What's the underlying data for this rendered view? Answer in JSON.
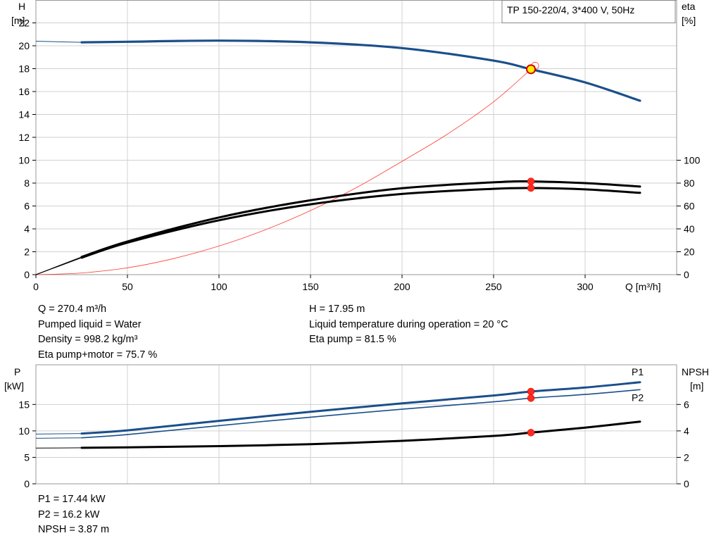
{
  "chart_data": [
    {
      "type": "line",
      "title": "TP 150-220/4, 3*400 V, 50Hz",
      "x_axis": {
        "label": "Q [m³/h]",
        "range": [
          0,
          350
        ],
        "ticks": [
          0,
          50,
          100,
          150,
          200,
          250,
          300
        ]
      },
      "y_left": {
        "label": "H",
        "unit": "[m]",
        "range": [
          0,
          24
        ],
        "ticks": [
          0,
          2,
          4,
          6,
          8,
          10,
          12,
          14,
          16,
          18,
          20,
          22
        ]
      },
      "y_right": {
        "label": "eta",
        "unit": "[%]",
        "range": [
          0,
          240
        ],
        "ticks": [
          0,
          20,
          40,
          60,
          80,
          100
        ]
      },
      "grid": true,
      "series": [
        {
          "role": "head",
          "axis": "left",
          "color": "#1a4f8b",
          "x": [
            0,
            25,
            50,
            100,
            150,
            200,
            250,
            270.4,
            300,
            330
          ],
          "y": [
            20.4,
            20.3,
            20.35,
            20.45,
            20.3,
            19.8,
            18.7,
            17.95,
            16.8,
            15.2
          ]
        },
        {
          "role": "system",
          "axis": "left",
          "color": "#ff3b30",
          "x": [
            0,
            25,
            50,
            75,
            100,
            125,
            150,
            175,
            200,
            225,
            250,
            270.4,
            272
          ],
          "y": [
            0,
            0.15,
            0.6,
            1.4,
            2.5,
            3.9,
            5.6,
            7.6,
            9.9,
            12.3,
            15.1,
            17.95,
            18.2
          ]
        },
        {
          "role": "eta-pump",
          "axis": "right",
          "color": "#000000",
          "x": [
            0,
            25,
            50,
            100,
            150,
            200,
            250,
            270.4,
            300,
            330
          ],
          "y": [
            0,
            15.5,
            29,
            50,
            65,
            75.5,
            80.7,
            81.5,
            80,
            77
          ]
        },
        {
          "role": "eta-pump-motor",
          "axis": "right",
          "color": "#000000",
          "x": [
            0,
            25,
            50,
            100,
            150,
            200,
            250,
            270.4,
            300,
            330
          ],
          "y": [
            0,
            14.8,
            28,
            47.5,
            61.5,
            70.5,
            75,
            75.7,
            74.5,
            71.5
          ]
        }
      ],
      "duty_point": {
        "x": 270.4,
        "y": 17.95,
        "color": "#ffee00"
      },
      "eta_markers": [
        {
          "x": 270.4,
          "y": 81.5
        },
        {
          "x": 270.4,
          "y": 75.7
        }
      ]
    },
    {
      "type": "line",
      "x_axis": {
        "range": [
          0,
          350
        ]
      },
      "y_left": {
        "label": "P",
        "unit": "[kW]",
        "range": [
          0,
          22.5
        ],
        "ticks": [
          0,
          5,
          10,
          15
        ]
      },
      "y_right": {
        "label": "NPSH",
        "unit": "[m]",
        "range": [
          0,
          9
        ],
        "ticks": [
          0,
          2,
          4,
          6
        ]
      },
      "grid": true,
      "series": [
        {
          "name": "P1",
          "axis": "left",
          "color": "#1a4f8b",
          "x": [
            0,
            25,
            50,
            100,
            150,
            200,
            250,
            270.4,
            300,
            330
          ],
          "y": [
            9.4,
            9.5,
            10.1,
            11.9,
            13.6,
            15.2,
            16.7,
            17.44,
            18.2,
            19.2
          ]
        },
        {
          "name": "P2",
          "axis": "left",
          "color": "#1a4f8b",
          "x": [
            0,
            25,
            50,
            100,
            150,
            200,
            250,
            270.4,
            300,
            330
          ],
          "y": [
            8.6,
            8.7,
            9.3,
            11.0,
            12.6,
            14.1,
            15.5,
            16.2,
            16.9,
            17.8
          ]
        },
        {
          "role": "npsh",
          "axis": "right",
          "color": "#000000",
          "x": [
            0,
            25,
            50,
            100,
            150,
            200,
            250,
            270.4,
            300,
            330
          ],
          "y": [
            2.7,
            2.72,
            2.76,
            2.85,
            3.0,
            3.25,
            3.62,
            3.87,
            4.25,
            4.7
          ]
        }
      ],
      "markers": [
        {
          "x": 270.4,
          "y": 17.44,
          "axis": "left"
        },
        {
          "x": 270.4,
          "y": 16.2,
          "axis": "left"
        },
        {
          "x": 270.4,
          "y": 3.87,
          "axis": "right"
        }
      ]
    }
  ],
  "info_top_left": [
    "Q = 270.4 m³/h",
    "Pumped liquid = Water",
    "Density = 998.2 kg/m³",
    "Eta pump+motor = 75.7 %"
  ],
  "info_top_right": [
    "H = 17.95 m",
    "Liquid temperature during operation = 20 °C",
    "Eta pump = 81.5 %"
  ],
  "info_bottom": [
    "P1 = 17.44 kW",
    "P2 = 16.2 kW",
    "NPSH = 3.87 m"
  ]
}
